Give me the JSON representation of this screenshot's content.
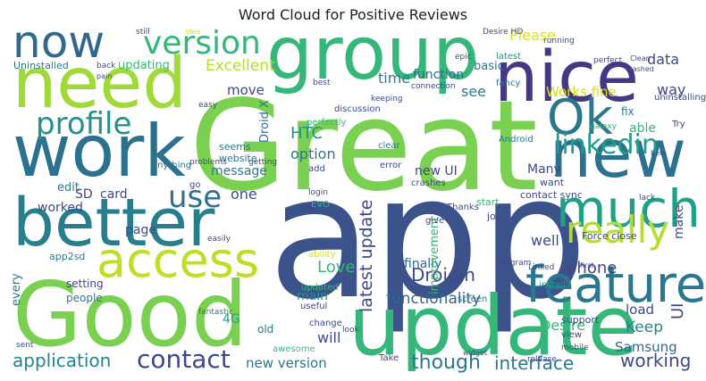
{
  "chart_data": {
    "type": "wordcloud",
    "title": "Word Cloud for Positive Reviews",
    "words": [
      {
        "text": "app",
        "weight": 190,
        "color": "#3b528b"
      },
      {
        "text": "Great",
        "weight": 140,
        "color": "#7ad151"
      },
      {
        "text": "Good",
        "weight": 100,
        "color": "#7ad151"
      },
      {
        "text": "update",
        "weight": 92,
        "color": "#35b779"
      },
      {
        "text": "group",
        "weight": 82,
        "color": "#35b779"
      },
      {
        "text": "nice",
        "weight": 78,
        "color": "#453781"
      },
      {
        "text": "work",
        "weight": 80,
        "color": "#2c728e"
      },
      {
        "text": "need",
        "weight": 78,
        "color": "#a0da39"
      },
      {
        "text": "better",
        "weight": 74,
        "color": "#277f8e"
      },
      {
        "text": "new",
        "weight": 74,
        "color": "#2c728e"
      },
      {
        "text": "much",
        "weight": 58,
        "color": "#1fa187"
      },
      {
        "text": "feature",
        "weight": 56,
        "color": "#2a788e"
      },
      {
        "text": "access",
        "weight": 54,
        "color": "#bddf26"
      },
      {
        "text": "now",
        "weight": 50,
        "color": "#31688e"
      },
      {
        "text": "Ok",
        "weight": 54,
        "color": "#2a788e"
      },
      {
        "text": "really",
        "weight": 42,
        "color": "#b5de2b"
      },
      {
        "text": "version",
        "weight": 36,
        "color": "#35b779"
      },
      {
        "text": "profile",
        "weight": 34,
        "color": "#21918c"
      },
      {
        "text": "linkedin",
        "weight": 30,
        "color": "#1f9e89"
      },
      {
        "text": "use",
        "weight": 34,
        "color": "#2c728e"
      },
      {
        "text": "contact",
        "weight": 28,
        "color": "#3e4989"
      },
      {
        "text": "application",
        "weight": 20,
        "color": "#26828e"
      },
      {
        "text": "interface",
        "weight": 20,
        "color": "#2a788e"
      },
      {
        "text": "working",
        "weight": 20,
        "color": "#3e4989"
      },
      {
        "text": "though",
        "weight": 22,
        "color": "#2a788e"
      },
      {
        "text": "new version",
        "weight": 15,
        "color": "#2a788e"
      },
      {
        "text": "latest update",
        "weight": 19,
        "color": "#3e4989"
      },
      {
        "text": "Droidin",
        "weight": 20,
        "color": "#3e4989"
      },
      {
        "text": "functionality",
        "weight": 17,
        "color": "#31688e"
      },
      {
        "text": "phone",
        "weight": 18,
        "color": "#3e4989"
      },
      {
        "text": "Keep",
        "weight": 17,
        "color": "#26828e"
      },
      {
        "text": "UI",
        "weight": 18,
        "color": "#3e4989"
      },
      {
        "text": "Samsung",
        "weight": 15,
        "color": "#31688e"
      },
      {
        "text": "load",
        "weight": 15,
        "color": "#3e4989"
      },
      {
        "text": "Desire",
        "weight": 16,
        "color": "#35b779"
      },
      {
        "text": "Excellent",
        "weight": 17,
        "color": "#b5de2b"
      },
      {
        "text": "Works fine",
        "weight": 15,
        "color": "#d8e219"
      },
      {
        "text": "Please",
        "weight": 16,
        "color": "#d8e219"
      },
      {
        "text": "data",
        "weight": 16,
        "color": "#3e4989"
      },
      {
        "text": "way",
        "weight": 16,
        "color": "#3e4989"
      },
      {
        "text": "time",
        "weight": 16,
        "color": "#2a788e"
      },
      {
        "text": "see",
        "weight": 16,
        "color": "#2a788e"
      },
      {
        "text": "function",
        "weight": 14,
        "color": "#31688e"
      },
      {
        "text": "basic",
        "weight": 13,
        "color": "#2a788e"
      },
      {
        "text": "updating",
        "weight": 13,
        "color": "#35b779"
      },
      {
        "text": "Uninstalled",
        "weight": 11,
        "color": "#2a788e"
      },
      {
        "text": "move",
        "weight": 15,
        "color": "#3e4989"
      },
      {
        "text": "Droid X",
        "weight": 13,
        "color": "#2a788e"
      },
      {
        "text": "HTC",
        "weight": 18,
        "color": "#21918c"
      },
      {
        "text": "option",
        "weight": 16,
        "color": "#2a788e"
      },
      {
        "text": "message",
        "weight": 14,
        "color": "#2a788e"
      },
      {
        "text": "one",
        "weight": 16,
        "color": "#3e4989"
      },
      {
        "text": "card",
        "weight": 14,
        "color": "#3e4989"
      },
      {
        "text": "SD",
        "weight": 14,
        "color": "#3e4989"
      },
      {
        "text": "edit",
        "weight": 13,
        "color": "#2a788e"
      },
      {
        "text": "worked",
        "weight": 14,
        "color": "#3e4989"
      },
      {
        "text": "page",
        "weight": 14,
        "color": "#3e4989"
      },
      {
        "text": "Love",
        "weight": 18,
        "color": "#35b779"
      },
      {
        "text": "main",
        "weight": 14,
        "color": "#21918c"
      },
      {
        "text": "finally",
        "weight": 14,
        "color": "#31688e"
      },
      {
        "text": "well",
        "weight": 16,
        "color": "#3e4989"
      },
      {
        "text": "make",
        "weight": 14,
        "color": "#3e4989"
      },
      {
        "text": "improvement",
        "weight": 13,
        "color": "#35b779"
      },
      {
        "text": "new UI",
        "weight": 14,
        "color": "#3e4989"
      },
      {
        "text": "Many",
        "weight": 14,
        "color": "#3e4989"
      },
      {
        "text": "able",
        "weight": 14,
        "color": "#35b779"
      },
      {
        "text": "fix",
        "weight": 12,
        "color": "#2a788e"
      },
      {
        "text": "4G",
        "weight": 14,
        "color": "#1fa187"
      },
      {
        "text": "will",
        "weight": 16,
        "color": "#3e4989"
      },
      {
        "text": "old",
        "weight": 12,
        "color": "#2a788e"
      },
      {
        "text": "setting",
        "weight": 12,
        "color": "#3e4989"
      },
      {
        "text": "people",
        "weight": 12,
        "color": "#2a788e"
      },
      {
        "text": "every",
        "weight": 13,
        "color": "#2a788e"
      },
      {
        "text": "app2sd",
        "weight": 11,
        "color": "#2a788e"
      },
      {
        "text": "Desire HD",
        "weight": 9,
        "color": "#3e4989"
      },
      {
        "text": "running",
        "weight": 9,
        "color": "#3e4989"
      },
      {
        "text": "perfect",
        "weight": 9,
        "color": "#3e4989"
      },
      {
        "text": "fancy",
        "weight": 10,
        "color": "#2a788e"
      },
      {
        "text": "latest",
        "weight": 10,
        "color": "#21918c"
      },
      {
        "text": "epic",
        "weight": 9,
        "color": "#3e4989"
      },
      {
        "text": "still",
        "weight": 9,
        "color": "#3e4989"
      },
      {
        "text": "idea",
        "weight": 8,
        "color": "#d8e219"
      },
      {
        "text": "back",
        "weight": 9,
        "color": "#3e4989"
      },
      {
        "text": "pain",
        "weight": 8,
        "color": "#3e4989"
      },
      {
        "text": "seems",
        "weight": 11,
        "color": "#2a788e"
      },
      {
        "text": "website",
        "weight": 11,
        "color": "#2a788e"
      },
      {
        "text": "anything",
        "weight": 10,
        "color": "#2a788e"
      },
      {
        "text": "crashes",
        "weight": 10,
        "color": "#3e4989"
      },
      {
        "text": "error",
        "weight": 10,
        "color": "#3e4989"
      },
      {
        "text": "contact sync",
        "weight": 11,
        "color": "#3e4989"
      },
      {
        "text": "want",
        "weight": 11,
        "color": "#3e4989"
      },
      {
        "text": "job",
        "weight": 11,
        "color": "#3e4989"
      },
      {
        "text": "start",
        "weight": 11,
        "color": "#35b779"
      },
      {
        "text": "Force close",
        "weight": 11,
        "color": "#3e4989"
      },
      {
        "text": "Thanks",
        "weight": 10,
        "color": "#3e4989"
      },
      {
        "text": "give",
        "weight": 10,
        "color": "#3e4989"
      },
      {
        "text": "Linked",
        "weight": 9,
        "color": "#3e4989"
      },
      {
        "text": "install",
        "weight": 10,
        "color": "#1fa187"
      },
      {
        "text": "screen",
        "weight": 10,
        "color": "#2a788e"
      },
      {
        "text": "support",
        "weight": 11,
        "color": "#3e4989"
      },
      {
        "text": "view",
        "weight": 10,
        "color": "#3e4989"
      },
      {
        "text": "Take",
        "weight": 10,
        "color": "#3e4989"
      },
      {
        "text": "look",
        "weight": 9,
        "color": "#3e4989"
      },
      {
        "text": "release",
        "weight": 9,
        "color": "#3e4989"
      },
      {
        "text": "awesome",
        "weight": 10,
        "color": "#35b779"
      },
      {
        "text": "fantastic",
        "weight": 9,
        "color": "#2a788e"
      },
      {
        "text": "sent",
        "weight": 9,
        "color": "#3e4989"
      },
      {
        "text": "easily",
        "weight": 9,
        "color": "#3e4989"
      },
      {
        "text": "site",
        "weight": 10,
        "color": "#3e4989"
      },
      {
        "text": "login",
        "weight": 9,
        "color": "#3e4989"
      },
      {
        "text": "EVO",
        "weight": 10,
        "color": "#35b779"
      },
      {
        "text": "add",
        "weight": 10,
        "color": "#3e4989"
      },
      {
        "text": "perfectly",
        "weight": 10,
        "color": "#35b779"
      },
      {
        "text": "clear",
        "weight": 10,
        "color": "#2a788e"
      },
      {
        "text": "Android",
        "weight": 10,
        "color": "#2a788e"
      },
      {
        "text": "galaxy",
        "weight": 9,
        "color": "#35b779"
      },
      {
        "text": "uninstalling",
        "weight": 10,
        "color": "#3e4989"
      },
      {
        "text": "Try",
        "weight": 10,
        "color": "#3e4989"
      },
      {
        "text": "easy",
        "weight": 9,
        "color": "#3e4989"
      },
      {
        "text": "useful",
        "weight": 10,
        "color": "#3e4989"
      },
      {
        "text": "change",
        "weight": 10,
        "color": "#3e4989"
      },
      {
        "text": "updated",
        "weight": 10,
        "color": "#35b779"
      },
      {
        "text": "ability",
        "weight": 10,
        "color": "#d8e219"
      },
      {
        "text": "keeping",
        "weight": 9,
        "color": "#3e4989"
      },
      {
        "text": "connection",
        "weight": 9,
        "color": "#3e4989"
      },
      {
        "text": "discussion",
        "weight": 10,
        "color": "#3e4989"
      },
      {
        "text": "best",
        "weight": 9,
        "color": "#3e4989"
      },
      {
        "text": "go",
        "weight": 10,
        "color": "#3e4989"
      },
      {
        "text": "problems",
        "weight": 9,
        "color": "#3e4989"
      },
      {
        "text": "getting",
        "weight": 9,
        "color": "#3e4989"
      },
      {
        "text": "program",
        "weight": 9,
        "color": "#3e4989"
      },
      {
        "text": "mobile",
        "weight": 9,
        "color": "#3e4989"
      },
      {
        "text": "widget",
        "weight": 8,
        "color": "#3e4989"
      },
      {
        "text": "beta",
        "weight": 8,
        "color": "#3e4989"
      },
      {
        "text": "lack",
        "weight": 9,
        "color": "#3e4989"
      },
      {
        "text": "crashed",
        "weight": 8,
        "color": "#3e4989"
      },
      {
        "text": "Clean",
        "weight": 8,
        "color": "#3e4989"
      },
      {
        "text": "first",
        "weight": 8,
        "color": "#3e4989"
      }
    ]
  }
}
